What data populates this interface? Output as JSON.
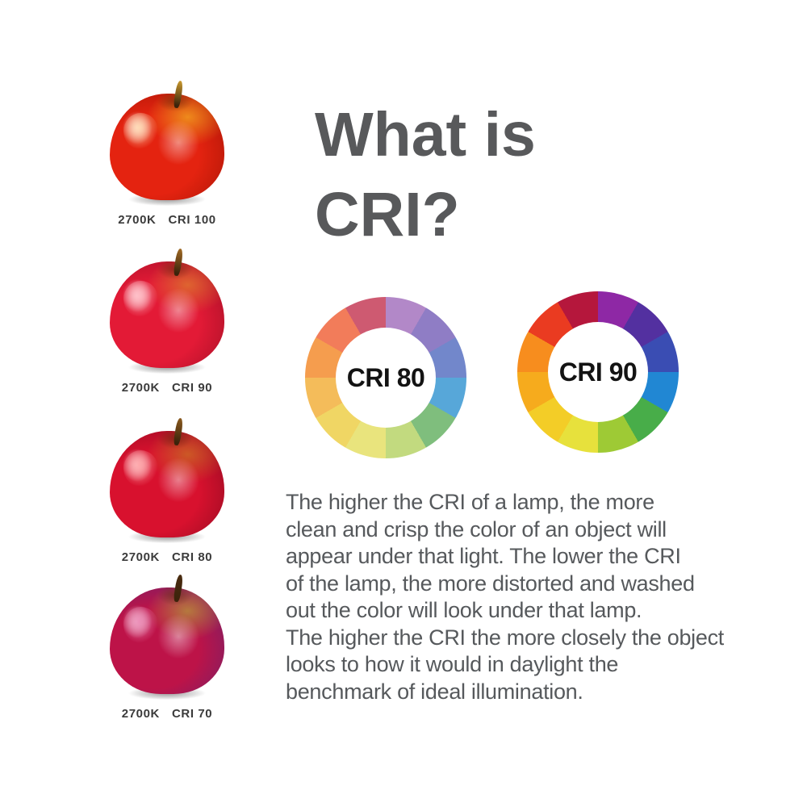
{
  "title": {
    "line1": "What is",
    "line2": "CRI?",
    "color": "#58595b"
  },
  "apples": [
    {
      "temp": "2700K",
      "cri": "CRI 100",
      "colors": {
        "base": "#e42310",
        "shade": "#9d1203",
        "top": "#ee8a1c",
        "hl": "#ffd9b0",
        "stem": "#c9992e"
      }
    },
    {
      "temp": "2700K",
      "cri": "CRI 90",
      "colors": {
        "base": "#e31a36",
        "shade": "#970d23",
        "top": "#de6430",
        "hl": "#ffb9c2",
        "stem": "#a06a24"
      }
    },
    {
      "temp": "2700K",
      "cri": "CRI 80",
      "colors": {
        "base": "#d8112e",
        "shade": "#860a1f",
        "top": "#cc5826",
        "hl": "#ffa3a6",
        "stem": "#8a5a1e"
      }
    },
    {
      "temp": "2700K",
      "cri": "CRI 70",
      "colors": {
        "base": "#bd1348",
        "shade": "#67236e",
        "top": "#b5793e",
        "hl": "#eb87b4",
        "stem": "#4a2c10"
      }
    }
  ],
  "wheels": [
    {
      "label": "CRI 80",
      "segments": [
        "#b288c8",
        "#8f7dc5",
        "#7287cb",
        "#57a7d9",
        "#7fbe7d",
        "#c2da7f",
        "#e9e47d",
        "#f0d664",
        "#f4bc5a",
        "#f59d4e",
        "#f27c5a",
        "#ce5a71"
      ]
    },
    {
      "label": "CRI 90",
      "segments": [
        "#8e28a5",
        "#5330a0",
        "#3a4db3",
        "#2187d3",
        "#48ad49",
        "#9eca35",
        "#e7e13c",
        "#f3cd27",
        "#f6ab1d",
        "#f78d1e",
        "#ea3b21",
        "#b5173c"
      ]
    }
  ],
  "description": {
    "text": "The higher the CRI of a lamp, the more\nclean and crisp the color of an object will\nappear under that light. The lower the CRI\nof the lamp, the more distorted and washed\nout the color will look under that lamp.\nThe higher the CRI the more closely the object\nlooks to how it would in daylight the\nbenchmark of ideal illumination.",
    "color": "#56595c"
  }
}
